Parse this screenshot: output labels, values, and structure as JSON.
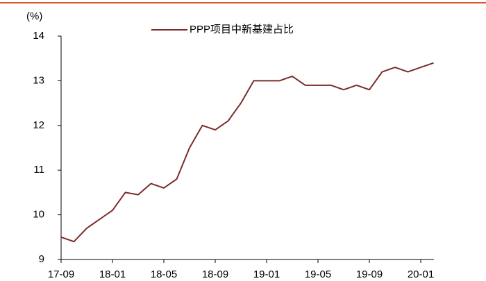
{
  "chart_data": {
    "type": "line",
    "y_unit_label": "(%)",
    "categories": [
      "17-09",
      null,
      null,
      null,
      "18-01",
      null,
      null,
      null,
      "18-05",
      null,
      null,
      null,
      "18-09",
      null,
      null,
      null,
      "19-01",
      null,
      null,
      null,
      "19-05",
      null,
      null,
      null,
      "19-09",
      null,
      null,
      null,
      "20-01",
      null
    ],
    "series": [
      {
        "name": "PPP项目中新基建占比",
        "color": "#7b2b2b",
        "values": [
          9.5,
          9.4,
          9.7,
          9.9,
          10.1,
          10.5,
          10.45,
          10.7,
          10.6,
          10.8,
          11.5,
          12.0,
          11.9,
          12.1,
          12.5,
          13.0,
          13.0,
          13.0,
          13.1,
          12.9,
          12.9,
          12.9,
          12.8,
          12.9,
          12.8,
          13.2,
          13.3,
          13.2,
          13.3,
          13.4
        ]
      }
    ],
    "ylim": [
      9,
      14
    ],
    "yticks": [
      9,
      10,
      11,
      12,
      13,
      14
    ],
    "grid": false,
    "legend": "top"
  }
}
